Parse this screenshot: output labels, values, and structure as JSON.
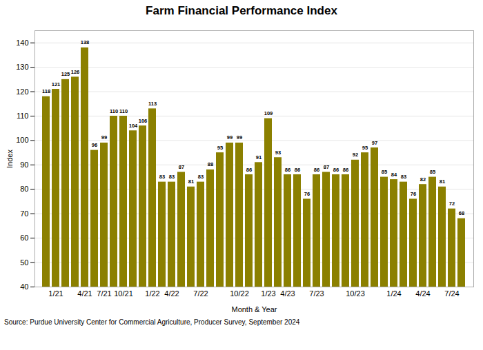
{
  "chart_data": {
    "type": "bar",
    "title": "Farm Financial Performance Index",
    "xlabel": "Month & Year",
    "ylabel": "Index",
    "caption": "Source: Purdue University Center for Commercial Agriculture, Producer Survey, September 2024",
    "categories": [
      null,
      "1/21",
      null,
      null,
      "4/21",
      null,
      "7/21",
      null,
      "10/21",
      null,
      null,
      "1/22",
      null,
      "4/22",
      null,
      null,
      "7/22",
      null,
      null,
      null,
      "10/22",
      null,
      null,
      "1/23",
      null,
      "4/23",
      null,
      null,
      "7/23",
      null,
      null,
      null,
      "10/23",
      null,
      null,
      null,
      "1/24",
      null,
      null,
      "4/24",
      null,
      null,
      "7/24",
      null
    ],
    "values": [
      118,
      121,
      125,
      126,
      138,
      96,
      99,
      110,
      110,
      104,
      106,
      113,
      83,
      83,
      87,
      81,
      83,
      88,
      95,
      99,
      99,
      86,
      91,
      109,
      93,
      86,
      86,
      76,
      86,
      87,
      86,
      86,
      92,
      95,
      97,
      85,
      84,
      83,
      76,
      82,
      85,
      81,
      72,
      68
    ],
    "color": "#8B8000",
    "ylim": [
      40,
      145
    ],
    "yticks": [
      40,
      50,
      60,
      70,
      80,
      90,
      100,
      110,
      120,
      130,
      140
    ],
    "grid": true,
    "data_labels": true
  }
}
